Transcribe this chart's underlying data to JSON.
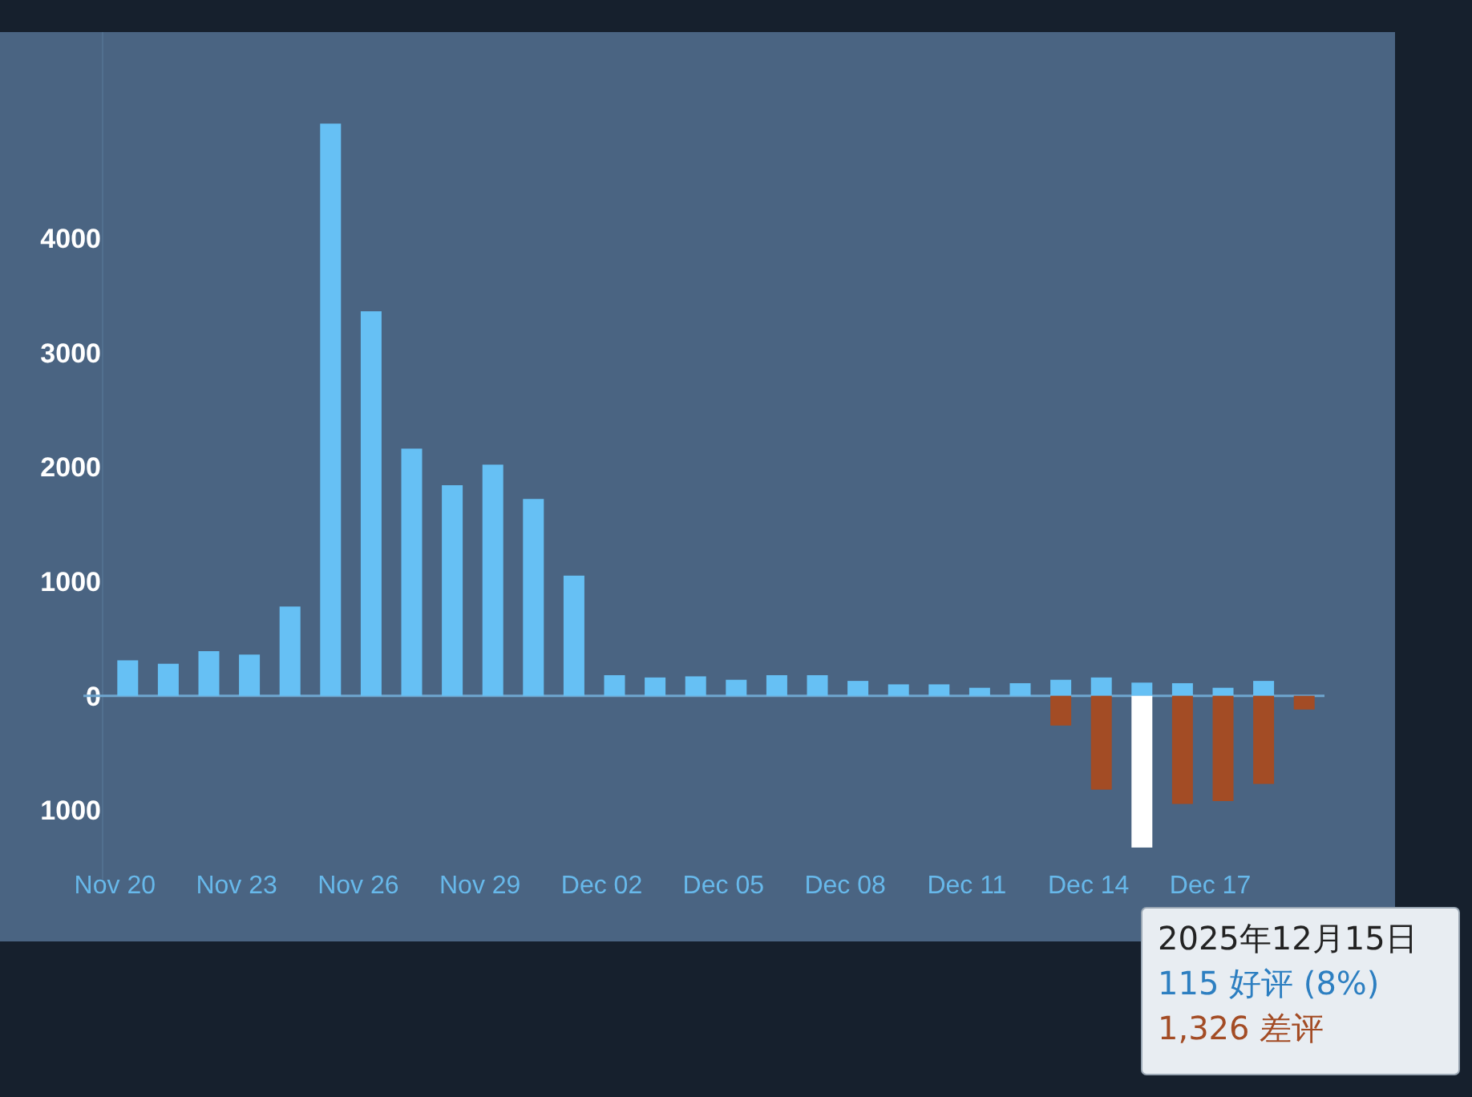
{
  "chart_data": {
    "type": "bar",
    "stacked": true,
    "categories": [
      "Nov 20",
      null,
      null,
      "Nov 23",
      null,
      null,
      "Nov 26",
      null,
      null,
      "Nov 29",
      null,
      null,
      "Dec 02",
      null,
      null,
      "Dec 05",
      null,
      null,
      "Dec 08",
      null,
      null,
      "Dec 11",
      null,
      null,
      "Dec 14",
      null,
      null,
      "Dec 17",
      null,
      null
    ],
    "series": [
      {
        "color": "#66c0f4",
        "values": [
          310,
          280,
          390,
          360,
          780,
          5000,
          3360,
          2160,
          1840,
          2020,
          1720,
          1050,
          180,
          160,
          170,
          140,
          180,
          180,
          130,
          100,
          100,
          70,
          110,
          140,
          160,
          115,
          110,
          70,
          130,
          null
        ]
      },
      {
        "color": "#a34c25",
        "colors": [
          null,
          null,
          null,
          null,
          null,
          null,
          null,
          null,
          null,
          null,
          null,
          null,
          null,
          null,
          null,
          null,
          null,
          null,
          null,
          null,
          null,
          null,
          null,
          "#a34c25",
          "#a34c25",
          "#ffffff",
          "#a34c25",
          "#a34c25",
          "#a34c25",
          "#a34c25"
        ],
        "values": [
          null,
          null,
          null,
          null,
          null,
          null,
          null,
          null,
          null,
          null,
          null,
          null,
          null,
          null,
          null,
          null,
          null,
          null,
          null,
          null,
          null,
          null,
          null,
          -260,
          -820,
          -1326,
          -945,
          -920,
          -770,
          -120
        ]
      }
    ],
    "ylim": [
      -1600,
      5800
    ],
    "ref_lines": [
      {
        "axis": "y",
        "value": 0,
        "color": "#6fa6cf"
      }
    ],
    "yticks": [
      {
        "value": -1000,
        "label": "1000"
      },
      0,
      1000,
      2000,
      3000,
      4000
    ],
    "annotations": [
      "2025年12月15日",
      "115 好评 (8%)",
      "1,326 差评"
    ]
  }
}
